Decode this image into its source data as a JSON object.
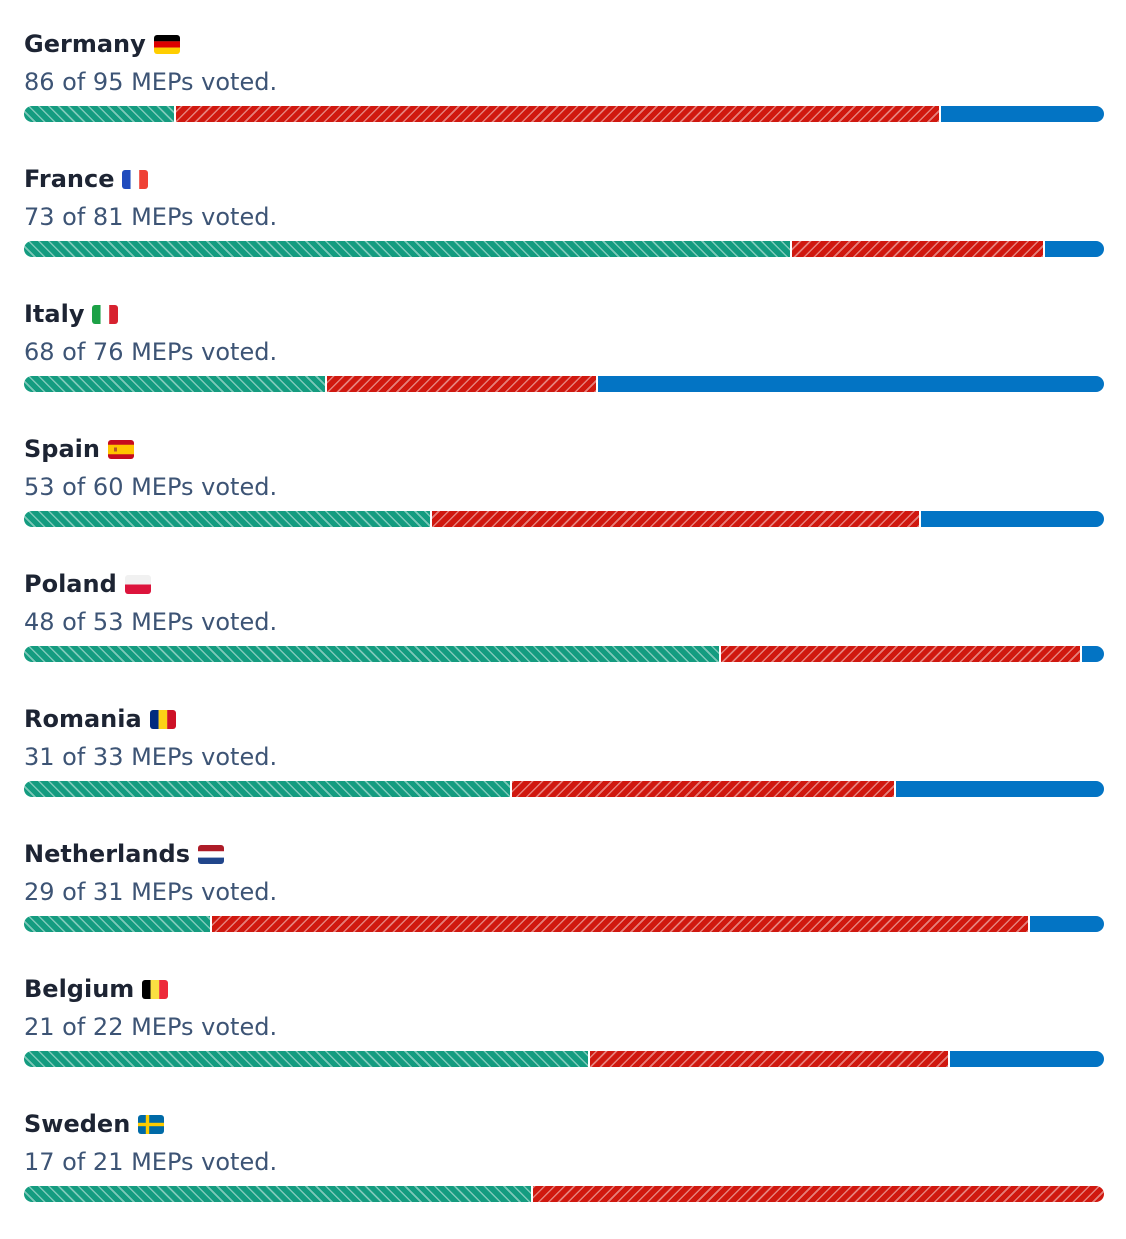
{
  "colors": {
    "for": "#149c80",
    "against": "#d0180f",
    "abstention": "#0374c4"
  },
  "chart_data": {
    "type": "bar",
    "orientation": "horizontal-stacked",
    "series_keys": [
      "for",
      "against",
      "abstention"
    ],
    "countries": [
      {
        "name": "Germany",
        "flag": "germany-flag-icon",
        "voted_text": "86 of 95 MEPs voted.",
        "voted": 86,
        "total": 95,
        "values": [
          12,
          61,
          13
        ]
      },
      {
        "name": "France",
        "flag": "france-flag-icon",
        "voted_text": "73 of 81 MEPs voted.",
        "voted": 73,
        "total": 81,
        "values": [
          52,
          17,
          4
        ]
      },
      {
        "name": "Italy",
        "flag": "italy-flag-icon",
        "voted_text": "68 of 76 MEPs voted.",
        "voted": 68,
        "total": 76,
        "values": [
          19,
          17,
          32
        ]
      },
      {
        "name": "Spain",
        "flag": "spain-flag-icon",
        "voted_text": "53 of 60 MEPs voted.",
        "voted": 53,
        "total": 60,
        "values": [
          20,
          24,
          9
        ]
      },
      {
        "name": "Poland",
        "flag": "poland-flag-icon",
        "voted_text": "48 of 53 MEPs voted.",
        "voted": 48,
        "total": 53,
        "values": [
          31,
          16,
          1
        ]
      },
      {
        "name": "Romania",
        "flag": "romania-flag-icon",
        "voted_text": "31 of 33 MEPs voted.",
        "voted": 31,
        "total": 33,
        "values": [
          14,
          11,
          6
        ]
      },
      {
        "name": "Netherlands",
        "flag": "netherlands-flag-icon",
        "voted_text": "29 of 31 MEPs voted.",
        "voted": 29,
        "total": 31,
        "values": [
          5,
          22,
          2
        ]
      },
      {
        "name": "Belgium",
        "flag": "belgium-flag-icon",
        "voted_text": "21 of 22 MEPs voted.",
        "voted": 21,
        "total": 22,
        "values": [
          11,
          7,
          3
        ]
      },
      {
        "name": "Sweden",
        "flag": "sweden-flag-icon",
        "voted_text": "17 of 21 MEPs voted.",
        "voted": 17,
        "total": 21,
        "values": [
          8,
          9,
          0
        ]
      }
    ]
  }
}
